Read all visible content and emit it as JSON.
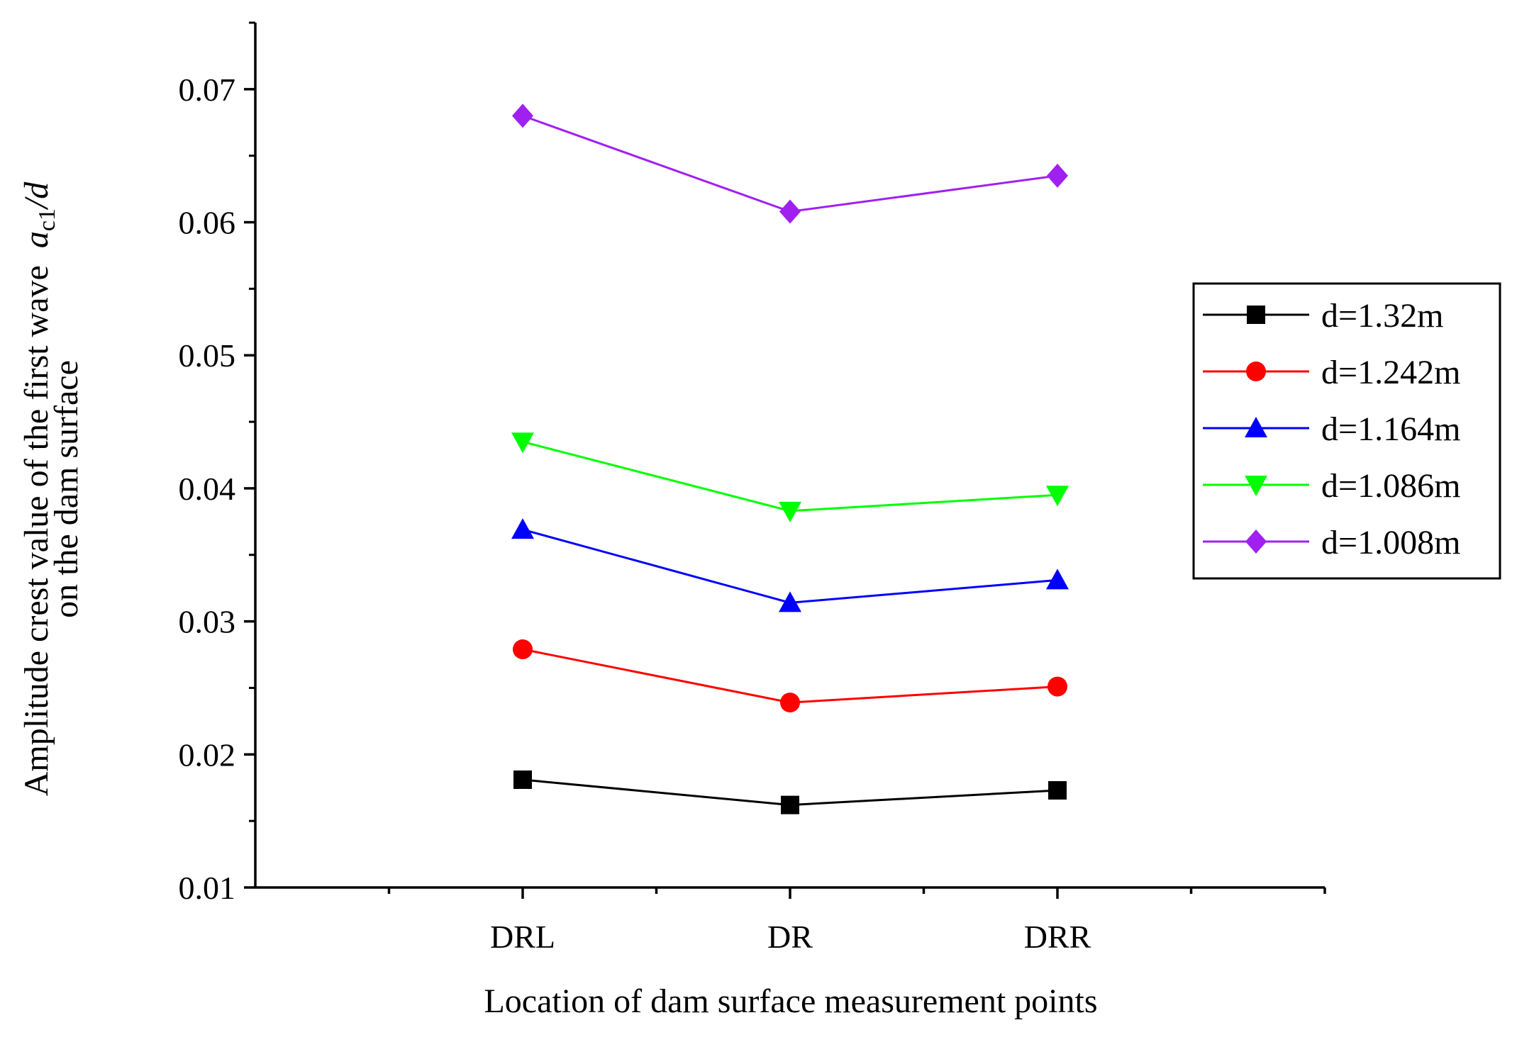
{
  "chart_data": {
    "type": "line",
    "categories": [
      "DRL",
      "DR",
      "DRR"
    ],
    "xlabel": "Location of dam surface measurement points",
    "ylabel": {
      "line1": "Amplitude crest value of the first wave",
      "line2": "on the dam surface",
      "symbol": "a",
      "subscript": "c1",
      "denominator": "/d"
    },
    "ylim": [
      0.01,
      0.075
    ],
    "yticks": [
      "0.01",
      "0.02",
      "0.03",
      "0.04",
      "0.05",
      "0.06",
      "0.07"
    ],
    "grid": false,
    "legend_position": "right",
    "series": [
      {
        "name": "d=1.32m",
        "color": "#000000",
        "marker": "square",
        "values": [
          0.0181,
          0.0162,
          0.0173
        ]
      },
      {
        "name": "d=1.242m",
        "color": "#ff0000",
        "marker": "circle",
        "values": [
          0.0279,
          0.0239,
          0.0251
        ]
      },
      {
        "name": "d=1.164m",
        "color": "#0000ff",
        "marker": "triangle-up",
        "values": [
          0.0369,
          0.0314,
          0.0331
        ]
      },
      {
        "name": "d=1.086m",
        "color": "#00ff00",
        "marker": "triangle-down",
        "values": [
          0.0435,
          0.0383,
          0.0395
        ]
      },
      {
        "name": "d=1.008m",
        "color": "#a020f0",
        "marker": "diamond",
        "values": [
          0.068,
          0.0608,
          0.0635
        ]
      }
    ]
  }
}
